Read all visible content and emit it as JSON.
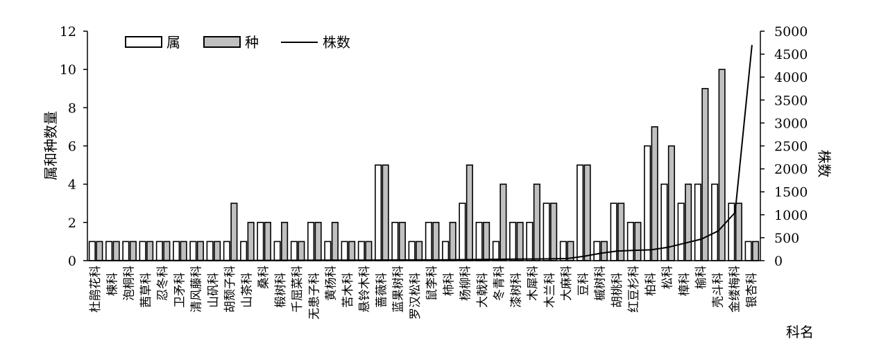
{
  "chart_data": {
    "type": "bar",
    "categories": [
      "杜鹃花科",
      "楝科",
      "泡桐科",
      "茜草科",
      "忍冬科",
      "卫矛科",
      "清风藤科",
      "山矾科",
      "胡颓子科",
      "山茶科",
      "桑科",
      "椴树科",
      "千屈菜科",
      "无患子科",
      "黄杨科",
      "苦木科",
      "悬铃木科",
      "蔷薇科",
      "蓝果树科",
      "罗汉松科",
      "鼠李科",
      "柿科",
      "杨柳科",
      "大戟科",
      "冬青科",
      "漆树科",
      "木犀科",
      "木兰科",
      "大麻科",
      "豆科",
      "槭树科",
      "胡桃科",
      "红豆杉科",
      "柏科",
      "松科",
      "樟科",
      "榆科",
      "壳斗科",
      "金缕梅科",
      "银杏科"
    ],
    "series": [
      {
        "name": "属",
        "axis": "left",
        "values": [
          1,
          1,
          1,
          1,
          1,
          1,
          1,
          1,
          1,
          1,
          2,
          1,
          1,
          2,
          1,
          1,
          1,
          5,
          2,
          1,
          2,
          1,
          3,
          2,
          1,
          2,
          2,
          3,
          1,
          5,
          1,
          3,
          2,
          6,
          4,
          3,
          4,
          4,
          3,
          1
        ]
      },
      {
        "name": "种",
        "axis": "left",
        "values": [
          1,
          1,
          1,
          1,
          1,
          1,
          1,
          1,
          3,
          2,
          2,
          2,
          1,
          2,
          2,
          1,
          1,
          5,
          2,
          1,
          2,
          2,
          5,
          2,
          4,
          2,
          4,
          3,
          1,
          5,
          1,
          3,
          2,
          7,
          6,
          4,
          9,
          10,
          3,
          1
        ]
      },
      {
        "name": "株数",
        "axis": "right",
        "type": "line",
        "values": [
          1,
          1,
          2,
          2,
          3,
          3,
          4,
          4,
          5,
          5,
          6,
          7,
          8,
          9,
          10,
          11,
          12,
          14,
          15,
          16,
          17,
          18,
          22,
          26,
          30,
          33,
          36,
          40,
          45,
          95,
          160,
          210,
          225,
          235,
          290,
          380,
          470,
          650,
          1050,
          4700
        ]
      }
    ],
    "yleft": {
      "label": "属和种数量",
      "ylim": [
        0,
        12
      ],
      "ticks": [
        "0",
        "2",
        "4",
        "6",
        "8",
        "10",
        "12"
      ]
    },
    "yright": {
      "label": "株数",
      "ylim": [
        0,
        5000
      ],
      "ticks": [
        "0",
        "500",
        "1000",
        "1500",
        "2000",
        "2500",
        "3000",
        "3500",
        "4000",
        "4500",
        "5000"
      ]
    },
    "xlabel": "科名",
    "legend": {
      "position": "top-left",
      "entries": [
        "属",
        "种",
        "株数"
      ]
    },
    "colors": {
      "genus_fill": "#ffffff",
      "species_fill": "#c0c0c0",
      "stroke": "#000000"
    },
    "grid": false
  }
}
